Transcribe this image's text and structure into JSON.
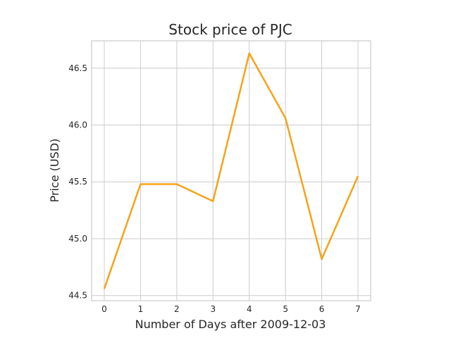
{
  "chart_data": {
    "type": "line",
    "title": "Stock price of PJC",
    "xlabel": "Number of Days after 2009-12-03",
    "ylabel": "Price (USD)",
    "x": [
      0,
      1,
      2,
      3,
      4,
      5,
      6,
      7
    ],
    "series": [
      {
        "values": [
          44.56,
          45.48,
          45.48,
          45.33,
          46.63,
          46.06,
          44.82,
          45.55
        ],
        "color": "#f5a31a"
      }
    ],
    "xlim": [
      -0.35,
      7.35
    ],
    "ylim": [
      44.455,
      46.74
    ],
    "xticks": [
      0,
      1,
      2,
      3,
      4,
      5,
      6,
      7
    ],
    "yticks": [
      44.5,
      45.0,
      45.5,
      46.0,
      46.5
    ],
    "ytick_labels": [
      "44.5",
      "45.0",
      "45.5",
      "46.0",
      "46.5"
    ],
    "grid": true,
    "legend": "none"
  }
}
